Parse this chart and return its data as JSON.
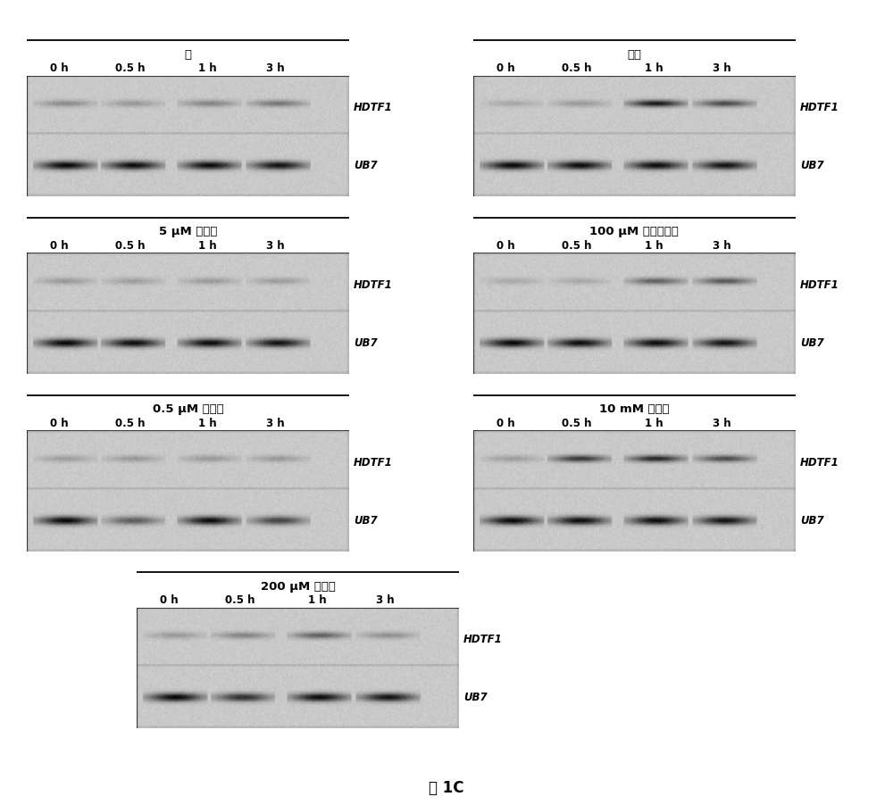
{
  "panels": [
    {
      "title": "水",
      "col": 0,
      "row": 0,
      "hdtf1_intensities": [
        0.28,
        0.22,
        0.32,
        0.38
      ],
      "ub7_intensities": [
        0.9,
        0.88,
        0.88,
        0.85
      ]
    },
    {
      "title": "乙醇",
      "col": 1,
      "row": 0,
      "hdtf1_intensities": [
        0.15,
        0.22,
        0.82,
        0.58
      ],
      "ub7_intensities": [
        0.9,
        0.88,
        0.88,
        0.85
      ]
    },
    {
      "title": "5 μM 生长素",
      "col": 0,
      "row": 1,
      "hdtf1_intensities": [
        0.22,
        0.2,
        0.22,
        0.2
      ],
      "ub7_intensities": [
        0.9,
        0.88,
        0.88,
        0.85
      ]
    },
    {
      "title": "100 μM 茅莉酸甲酯",
      "col": 1,
      "row": 1,
      "hdtf1_intensities": [
        0.15,
        0.15,
        0.48,
        0.52
      ],
      "ub7_intensities": [
        0.9,
        0.88,
        0.88,
        0.85
      ]
    },
    {
      "title": "0.5 μM 赤鈴素",
      "col": 0,
      "row": 2,
      "hdtf1_intensities": [
        0.2,
        0.22,
        0.22,
        0.22
      ],
      "ub7_intensities": [
        0.9,
        0.5,
        0.88,
        0.62
      ]
    },
    {
      "title": "10 mM 水杨酸",
      "col": 1,
      "row": 2,
      "hdtf1_intensities": [
        0.2,
        0.68,
        0.75,
        0.58
      ],
      "ub7_intensities": [
        0.9,
        0.88,
        0.88,
        0.85
      ]
    },
    {
      "title": "200 μM 乙烯利",
      "col": 0,
      "row": 3,
      "hdtf1_intensities": [
        0.22,
        0.32,
        0.48,
        0.26
      ],
      "ub7_intensities": [
        0.9,
        0.72,
        0.88,
        0.85
      ]
    }
  ],
  "time_labels": [
    "0 h",
    "0.5 h",
    "1 h",
    "3 h"
  ],
  "figure_label": "图 1C",
  "gel_bg": "#c8c8c8",
  "gel_border": "#aaaaaa",
  "white": "#ffffff",
  "noise_seed": 42
}
